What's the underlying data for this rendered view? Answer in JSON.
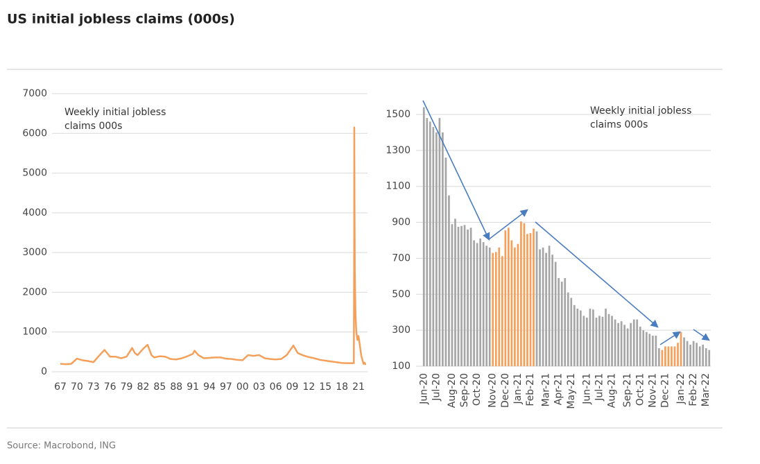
{
  "title": "US initial jobless claims (000s)",
  "source": "Source: Macrobond, ING",
  "chart_data": [
    {
      "type": "line",
      "annotation": [
        "Weekly initial jobless",
        "claims 000s"
      ],
      "x": [
        1967,
        1968,
        1969,
        1970,
        1971,
        1972,
        1973,
        1974,
        1975,
        1976,
        1977,
        1978,
        1979,
        1980,
        1980.5,
        1981,
        1982,
        1982.8,
        1983.5,
        1984,
        1985,
        1986,
        1987,
        1988,
        1989,
        1990,
        1991,
        1991.3,
        1992,
        1993,
        1994,
        1995,
        1996,
        1997,
        1998,
        1999,
        2000,
        2001,
        2002,
        2003,
        2004,
        2005,
        2006,
        2007,
        2008,
        2009.2,
        2010,
        2011,
        2012,
        2013,
        2014,
        2015,
        2016,
        2017,
        2018,
        2019,
        2020.15,
        2020.21,
        2020.23,
        2020.27,
        2020.33,
        2020.45,
        2020.6,
        2020.8,
        2021,
        2021.2,
        2021.5,
        2021.9,
        2022.1,
        2022.25
      ],
      "series": [
        {
          "color": "#f5a05a",
          "values": [
            200,
            190,
            200,
            330,
            290,
            270,
            240,
            400,
            550,
            380,
            380,
            340,
            380,
            600,
            470,
            420,
            580,
            680,
            420,
            360,
            390,
            380,
            320,
            310,
            340,
            390,
            450,
            530,
            420,
            340,
            350,
            360,
            360,
            330,
            320,
            300,
            290,
            420,
            400,
            420,
            340,
            320,
            310,
            320,
            420,
            660,
            470,
            410,
            370,
            340,
            300,
            280,
            260,
            240,
            220,
            215,
            215,
            3300,
            6150,
            4400,
            2500,
            1450,
            1000,
            800,
            900,
            700,
            400,
            200,
            230,
            170
          ]
        }
      ],
      "xlim": [
        1966.5,
        2022.5
      ],
      "xticks": [
        {
          "value": 1967,
          "label": "67"
        },
        {
          "value": 1970,
          "label": "70"
        },
        {
          "value": 1973,
          "label": "73"
        },
        {
          "value": 1976,
          "label": "76"
        },
        {
          "value": 1979,
          "label": "79"
        },
        {
          "value": 1982,
          "label": "82"
        },
        {
          "value": 1985,
          "label": "85"
        },
        {
          "value": 1988,
          "label": "88"
        },
        {
          "value": 1991,
          "label": "91"
        },
        {
          "value": 1994,
          "label": "94"
        },
        {
          "value": 1997,
          "label": "97"
        },
        {
          "value": 2000,
          "label": "00"
        },
        {
          "value": 2003,
          "label": "03"
        },
        {
          "value": 2006,
          "label": "06"
        },
        {
          "value": 2009,
          "label": "09"
        },
        {
          "value": 2012,
          "label": "12"
        },
        {
          "value": 2015,
          "label": "15"
        },
        {
          "value": 2018,
          "label": "18"
        },
        {
          "value": 2021,
          "label": "21"
        }
      ],
      "ylim": [
        0,
        7000
      ],
      "yticks": [
        0,
        1000,
        2000,
        3000,
        4000,
        5000,
        6000,
        7000
      ],
      "grid": true
    },
    {
      "type": "bar",
      "annotation": [
        "Weekly initial jobless",
        "claims 000s"
      ],
      "categories": [
        "Jun-20",
        null,
        null,
        null,
        "Jul-20",
        null,
        null,
        null,
        null,
        "Aug-20",
        null,
        null,
        null,
        "Sep-20",
        null,
        null,
        null,
        "Oct-20",
        null,
        null,
        null,
        null,
        "Nov-20",
        null,
        null,
        null,
        "Dec-20",
        null,
        null,
        null,
        "Jan-21",
        null,
        null,
        null,
        "Feb-21",
        null,
        null,
        null,
        null,
        "Mar-21",
        null,
        null,
        null,
        "Apr-21",
        null,
        null,
        null,
        "May-21",
        null,
        null,
        null,
        null,
        "Jun-21",
        null,
        null,
        null,
        "Jul-21",
        null,
        null,
        null,
        "Aug-21",
        null,
        null,
        null,
        null,
        "Sep-21",
        null,
        null,
        null,
        "Oct-21",
        null,
        null,
        null,
        "Nov-21",
        null,
        null,
        null,
        "Dec-21",
        null,
        null,
        null,
        null,
        "Jan-22",
        null,
        null,
        null,
        "Feb-22",
        null,
        null,
        null,
        "Mar-22",
        null
      ],
      "values": [
        1540,
        1480,
        1460,
        1430,
        1400,
        1480,
        1400,
        1260,
        1050,
        890,
        920,
        875,
        880,
        885,
        860,
        870,
        800,
        785,
        810,
        790,
        770,
        760,
        730,
        735,
        760,
        712,
        855,
        870,
        800,
        760,
        780,
        905,
        895,
        835,
        840,
        865,
        850,
        750,
        760,
        730,
        770,
        720,
        680,
        590,
        570,
        590,
        510,
        480,
        440,
        420,
        410,
        380,
        370,
        420,
        415,
        370,
        380,
        375,
        420,
        390,
        380,
        360,
        340,
        350,
        330,
        310,
        340,
        360,
        360,
        320,
        300,
        290,
        280,
        270,
        270,
        200,
        190,
        210,
        210,
        210,
        210,
        230,
        290,
        260,
        240,
        220,
        240,
        230,
        210,
        220,
        200,
        190
      ],
      "colors": [
        "#a6a6a6",
        "#a6a6a6",
        "#a6a6a6",
        "#a6a6a6",
        "#a6a6a6",
        "#a6a6a6",
        "#a6a6a6",
        "#a6a6a6",
        "#a6a6a6",
        "#a6a6a6",
        "#a6a6a6",
        "#a6a6a6",
        "#a6a6a6",
        "#a6a6a6",
        "#a6a6a6",
        "#a6a6a6",
        "#a6a6a6",
        "#a6a6a6",
        "#a6a6a6",
        "#a6a6a6",
        "#a6a6a6",
        "#a6a6a6",
        "#f5a05a",
        "#f5a05a",
        "#f5a05a",
        "#f5a05a",
        "#f5a05a",
        "#f5a05a",
        "#f5a05a",
        "#f5a05a",
        "#f5a05a",
        "#f5a05a",
        "#f5a05a",
        "#f5a05a",
        "#f5a05a",
        "#f5a05a",
        "#a6a6a6",
        "#a6a6a6",
        "#a6a6a6",
        "#a6a6a6",
        "#a6a6a6",
        "#a6a6a6",
        "#a6a6a6",
        "#a6a6a6",
        "#a6a6a6",
        "#a6a6a6",
        "#a6a6a6",
        "#a6a6a6",
        "#a6a6a6",
        "#a6a6a6",
        "#a6a6a6",
        "#a6a6a6",
        "#a6a6a6",
        "#a6a6a6",
        "#a6a6a6",
        "#a6a6a6",
        "#a6a6a6",
        "#a6a6a6",
        "#a6a6a6",
        "#a6a6a6",
        "#a6a6a6",
        "#a6a6a6",
        "#a6a6a6",
        "#a6a6a6",
        "#a6a6a6",
        "#a6a6a6",
        "#a6a6a6",
        "#a6a6a6",
        "#a6a6a6",
        "#a6a6a6",
        "#a6a6a6",
        "#a6a6a6",
        "#a6a6a6",
        "#a6a6a6",
        "#a6a6a6",
        "#a6a6a6",
        "#f5a05a",
        "#f5a05a",
        "#f5a05a",
        "#f5a05a",
        "#f5a05a",
        "#f5a05a",
        "#f5a05a",
        "#a6a6a6",
        "#a6a6a6",
        "#a6a6a6",
        "#a6a6a6",
        "#a6a6a6",
        "#a6a6a6",
        "#a6a6a6",
        "#a6a6a6",
        "#a6a6a6"
      ],
      "ylim": [
        100,
        1550
      ],
      "yticks": [
        100,
        300,
        500,
        700,
        900,
        1100,
        1300,
        1500
      ],
      "grid": true
    }
  ]
}
